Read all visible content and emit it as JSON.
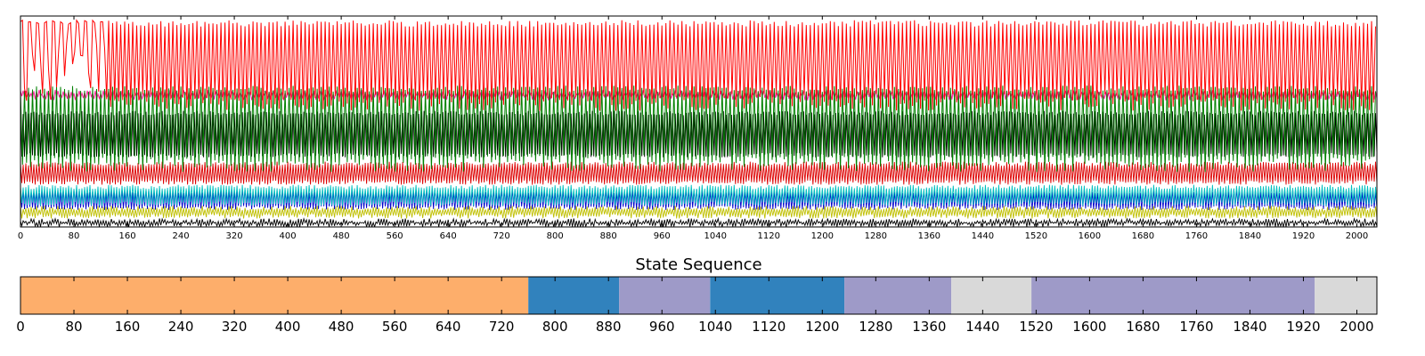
{
  "chart_data": [
    {
      "type": "line",
      "title": "",
      "xlabel": "",
      "ylabel": "",
      "xlim": [
        0,
        2030
      ],
      "ylim": [
        0,
        1
      ],
      "x_ticks": [
        0,
        80,
        160,
        240,
        320,
        400,
        480,
        560,
        640,
        720,
        800,
        880,
        960,
        1040,
        1120,
        1200,
        1280,
        1360,
        1440,
        1520,
        1600,
        1680,
        1760,
        1840,
        1920,
        2000
      ],
      "y_ticks_shown": false,
      "series": [
        {
          "color": "#ff0000",
          "style": "oscillating",
          "low": 0.59,
          "high": 0.98,
          "dense_from": 130
        },
        {
          "color": "#008000",
          "style": "oscillating",
          "low": 0.3,
          "high": 0.67
        },
        {
          "color": "#000000",
          "style": "band",
          "low": 0.33,
          "high": 0.55
        },
        {
          "color": "#dd0000",
          "style": "band",
          "low": 0.2,
          "high": 0.31
        },
        {
          "color": "#00c0c0",
          "style": "band",
          "low": 0.1,
          "high": 0.2
        },
        {
          "color": "#0000cc",
          "style": "band",
          "low": 0.08,
          "high": 0.18
        },
        {
          "color": "#c0c000",
          "style": "band",
          "low": 0.04,
          "high": 0.1
        },
        {
          "color": "#000000",
          "style": "band",
          "low": 0.0,
          "high": 0.04
        },
        {
          "color": "#ff1493",
          "style": "band",
          "low": 0.6,
          "high": 0.65
        }
      ]
    },
    {
      "type": "state-sequence",
      "title": "State Sequence",
      "xlim": [
        0,
        2030
      ],
      "x_ticks": [
        0,
        80,
        160,
        240,
        320,
        400,
        480,
        560,
        640,
        720,
        800,
        880,
        960,
        1040,
        1120,
        1200,
        1280,
        1360,
        1440,
        1520,
        1600,
        1680,
        1760,
        1840,
        1920,
        2000
      ],
      "segments": [
        {
          "start": 0,
          "end": 760,
          "color": "#fdae6b"
        },
        {
          "start": 760,
          "end": 896,
          "color": "#3182bd"
        },
        {
          "start": 896,
          "end": 1032,
          "color": "#9e9ac8"
        },
        {
          "start": 1032,
          "end": 1233,
          "color": "#3182bd"
        },
        {
          "start": 1233,
          "end": 1393,
          "color": "#9e9ac8"
        },
        {
          "start": 1393,
          "end": 1513,
          "color": "#d9d9d9"
        },
        {
          "start": 1513,
          "end": 1937,
          "color": "#9e9ac8"
        },
        {
          "start": 1937,
          "end": 2030,
          "color": "#d9d9d9"
        }
      ]
    }
  ]
}
